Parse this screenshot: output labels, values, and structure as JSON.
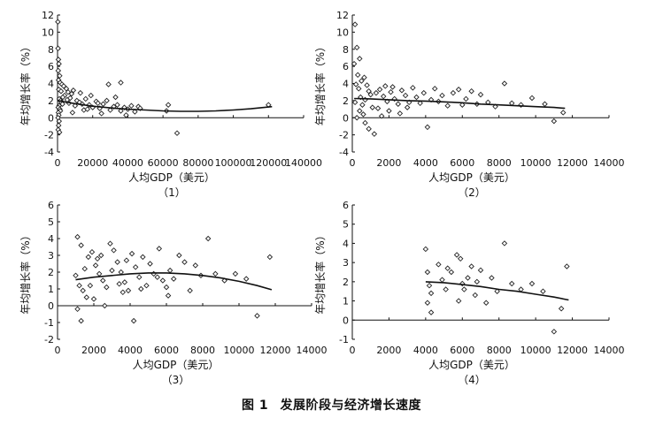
{
  "figure": {
    "caption_number": "图 1",
    "caption_title": "发展阶段与经济增长速度"
  },
  "chart_data": [
    {
      "type": "scatter",
      "label": "（1）",
      "xlabel": "人均GDP（美元）",
      "ylabel": "年均增长率（%）",
      "xlim": [
        0,
        140000
      ],
      "ylim": [
        -4,
        12
      ],
      "xticks": [
        0,
        20000,
        40000,
        60000,
        80000,
        100000,
        120000,
        140000
      ],
      "yticks": [
        -4,
        -2,
        0,
        2,
        4,
        6,
        8,
        10,
        12
      ],
      "points": [
        [
          200,
          11.2
        ],
        [
          300,
          8.1
        ],
        [
          500,
          6.8
        ],
        [
          800,
          6.3
        ],
        [
          400,
          5.5
        ],
        [
          1200,
          4.9
        ],
        [
          600,
          4.4
        ],
        [
          1500,
          4.1
        ],
        [
          2500,
          3.9
        ],
        [
          3500,
          3.7
        ],
        [
          700,
          3.3
        ],
        [
          2000,
          3.1
        ],
        [
          5000,
          3.4
        ],
        [
          6000,
          3.0
        ],
        [
          8000,
          2.8
        ],
        [
          9000,
          3.2
        ],
        [
          4000,
          2.6
        ],
        [
          3000,
          2.4
        ],
        [
          1000,
          2.2
        ],
        [
          1800,
          2.0
        ],
        [
          2200,
          1.8
        ],
        [
          2800,
          1.6
        ],
        [
          900,
          1.4
        ],
        [
          400,
          1.2
        ],
        [
          1300,
          1.0
        ],
        [
          1600,
          0.8
        ],
        [
          500,
          0.6
        ],
        [
          700,
          0.3
        ],
        [
          300,
          0.0
        ],
        [
          900,
          -0.4
        ],
        [
          600,
          -0.9
        ],
        [
          400,
          -1.4
        ],
        [
          1100,
          -1.7
        ],
        [
          5500,
          2.1
        ],
        [
          6500,
          1.7
        ],
        [
          7200,
          2.3
        ],
        [
          11000,
          2.0
        ],
        [
          12500,
          1.8
        ],
        [
          14000,
          1.6
        ],
        [
          16000,
          2.2
        ],
        [
          18000,
          1.5
        ],
        [
          20000,
          1.2
        ],
        [
          22000,
          1.9
        ],
        [
          24000,
          1.1
        ],
        [
          26000,
          1.6
        ],
        [
          28000,
          2.0
        ],
        [
          30000,
          0.9
        ],
        [
          32000,
          1.3
        ],
        [
          34000,
          1.5
        ],
        [
          36000,
          0.8
        ],
        [
          38000,
          1.2
        ],
        [
          40000,
          1.0
        ],
        [
          42000,
          1.4
        ],
        [
          44000,
          0.7
        ],
        [
          46000,
          1.3
        ],
        [
          29000,
          3.9
        ],
        [
          36000,
          4.1
        ],
        [
          39000,
          0.3
        ],
        [
          33000,
          2.4
        ],
        [
          25000,
          0.5
        ],
        [
          15000,
          0.9
        ],
        [
          10000,
          1.4
        ],
        [
          13000,
          2.9
        ],
        [
          8500,
          0.6
        ],
        [
          47000,
          1.1
        ],
        [
          62000,
          0.8
        ],
        [
          63000,
          1.5
        ],
        [
          68000,
          -1.8
        ],
        [
          120000,
          1.5
        ],
        [
          19000,
          2.6
        ],
        [
          17000,
          1.0
        ],
        [
          23000,
          1.7
        ]
      ],
      "trend": [
        [
          0,
          2.0
        ],
        [
          10000,
          1.65
        ],
        [
          20000,
          1.35
        ],
        [
          30000,
          1.15
        ],
        [
          40000,
          1.0
        ],
        [
          50000,
          0.9
        ],
        [
          60000,
          0.8
        ],
        [
          70000,
          0.75
        ],
        [
          80000,
          0.75
        ],
        [
          90000,
          0.8
        ],
        [
          100000,
          0.9
        ],
        [
          110000,
          1.05
        ],
        [
          122000,
          1.3
        ]
      ]
    },
    {
      "type": "scatter",
      "label": "（2）",
      "xlabel": "人均GDP（美元）",
      "ylabel": "年均增长率（%）",
      "xlim": [
        0,
        14000
      ],
      "ylim": [
        -4,
        12
      ],
      "xticks": [
        0,
        2000,
        4000,
        6000,
        8000,
        10000,
        12000,
        14000
      ],
      "yticks": [
        -4,
        -2,
        0,
        2,
        4,
        6,
        8,
        10,
        12
      ],
      "points": [
        [
          150,
          10.9
        ],
        [
          250,
          8.2
        ],
        [
          400,
          6.9
        ],
        [
          100,
          6.3
        ],
        [
          300,
          5.0
        ],
        [
          500,
          4.3
        ],
        [
          650,
          4.7
        ],
        [
          200,
          3.9
        ],
        [
          350,
          3.4
        ],
        [
          800,
          3.8
        ],
        [
          900,
          3.1
        ],
        [
          1000,
          2.7
        ],
        [
          450,
          2.4
        ],
        [
          700,
          2.1
        ],
        [
          150,
          1.8
        ],
        [
          550,
          1.5
        ],
        [
          1100,
          1.2
        ],
        [
          400,
          0.8
        ],
        [
          600,
          0.4
        ],
        [
          250,
          0.0
        ],
        [
          700,
          -0.6
        ],
        [
          900,
          -1.3
        ],
        [
          1200,
          -1.9
        ],
        [
          1300,
          2.9
        ],
        [
          1500,
          3.3
        ],
        [
          1700,
          2.5
        ],
        [
          1900,
          1.9
        ],
        [
          2100,
          3.0
        ],
        [
          2300,
          2.2
        ],
        [
          2500,
          1.6
        ],
        [
          2700,
          3.2
        ],
        [
          2900,
          2.6
        ],
        [
          3100,
          1.8
        ],
        [
          3300,
          3.5
        ],
        [
          3500,
          2.4
        ],
        [
          3700,
          1.7
        ],
        [
          3900,
          2.9
        ],
        [
          4100,
          -1.1
        ],
        [
          4300,
          2.1
        ],
        [
          4500,
          3.4
        ],
        [
          4700,
          1.9
        ],
        [
          4900,
          2.6
        ],
        [
          5200,
          1.4
        ],
        [
          5500,
          2.9
        ],
        [
          5800,
          3.3
        ],
        [
          6000,
          1.5
        ],
        [
          6200,
          2.2
        ],
        [
          6500,
          3.1
        ],
        [
          6800,
          1.6
        ],
        [
          7000,
          2.7
        ],
        [
          7400,
          1.8
        ],
        [
          7800,
          1.3
        ],
        [
          8300,
          4.0
        ],
        [
          8700,
          1.7
        ],
        [
          9200,
          1.5
        ],
        [
          9800,
          2.3
        ],
        [
          10500,
          1.6
        ],
        [
          11000,
          -0.4
        ],
        [
          11500,
          0.6
        ],
        [
          1600,
          0.2
        ],
        [
          2000,
          0.8
        ],
        [
          1400,
          1.1
        ],
        [
          2600,
          0.5
        ],
        [
          3000,
          1.2
        ],
        [
          1800,
          3.7
        ],
        [
          2200,
          3.6
        ]
      ],
      "trend": [
        [
          100,
          2.25
        ],
        [
          1000,
          2.2
        ],
        [
          2000,
          2.1
        ],
        [
          3000,
          2.0
        ],
        [
          4000,
          1.95
        ],
        [
          5000,
          1.85
        ],
        [
          6000,
          1.75
        ],
        [
          7000,
          1.6
        ],
        [
          8000,
          1.5
        ],
        [
          9000,
          1.4
        ],
        [
          10000,
          1.3
        ],
        [
          11000,
          1.2
        ],
        [
          11600,
          1.1
        ]
      ]
    },
    {
      "type": "scatter",
      "label": "（3）",
      "xlabel": "人均GDP（美元）",
      "ylabel": "年均增长率（%）",
      "xlim": [
        0,
        14000
      ],
      "ylim": [
        -2,
        6
      ],
      "xticks": [
        0,
        2000,
        4000,
        6000,
        8000,
        10000,
        12000,
        14000
      ],
      "yticks": [
        -2,
        -1,
        0,
        1,
        2,
        3,
        4,
        5,
        6
      ],
      "points": [
        [
          1100,
          4.1
        ],
        [
          1300,
          3.6
        ],
        [
          1500,
          2.2
        ],
        [
          1000,
          1.8
        ],
        [
          1200,
          1.2
        ],
        [
          1400,
          0.9
        ],
        [
          1600,
          0.5
        ],
        [
          1100,
          -0.2
        ],
        [
          1300,
          -0.9
        ],
        [
          1700,
          2.9
        ],
        [
          1900,
          3.2
        ],
        [
          2100,
          2.4
        ],
        [
          2300,
          1.9
        ],
        [
          2500,
          1.5
        ],
        [
          2700,
          1.1
        ],
        [
          2900,
          3.7
        ],
        [
          3100,
          3.3
        ],
        [
          3300,
          2.6
        ],
        [
          3500,
          2.0
        ],
        [
          3700,
          1.4
        ],
        [
          3900,
          0.9
        ],
        [
          4100,
          3.1
        ],
        [
          4300,
          2.3
        ],
        [
          4500,
          1.7
        ],
        [
          4700,
          2.9
        ],
        [
          4900,
          1.2
        ],
        [
          5100,
          2.5
        ],
        [
          5300,
          1.9
        ],
        [
          5600,
          3.4
        ],
        [
          5800,
          1.5
        ],
        [
          6000,
          1.1
        ],
        [
          6200,
          2.1
        ],
        [
          6400,
          1.6
        ],
        [
          6700,
          3.0
        ],
        [
          7000,
          2.6
        ],
        [
          7300,
          0.9
        ],
        [
          7600,
          2.4
        ],
        [
          7900,
          1.8
        ],
        [
          8300,
          4.0
        ],
        [
          8700,
          1.9
        ],
        [
          9200,
          1.5
        ],
        [
          9800,
          1.9
        ],
        [
          10400,
          1.6
        ],
        [
          11000,
          -0.6
        ],
        [
          11700,
          2.9
        ],
        [
          1800,
          1.2
        ],
        [
          2000,
          0.4
        ],
        [
          2200,
          2.8
        ],
        [
          2600,
          0.0
        ],
        [
          3000,
          2.1
        ],
        [
          3400,
          1.3
        ],
        [
          3800,
          2.7
        ],
        [
          4200,
          -0.9
        ],
        [
          4600,
          1.0
        ],
        [
          5500,
          1.7
        ],
        [
          6100,
          0.6
        ],
        [
          2400,
          3.0
        ],
        [
          3600,
          0.8
        ]
      ],
      "trend": [
        [
          1000,
          1.55
        ],
        [
          2000,
          1.7
        ],
        [
          3000,
          1.8
        ],
        [
          4000,
          1.9
        ],
        [
          5000,
          1.95
        ],
        [
          6000,
          1.95
        ],
        [
          7000,
          1.9
        ],
        [
          8000,
          1.8
        ],
        [
          9000,
          1.65
        ],
        [
          10000,
          1.45
        ],
        [
          11000,
          1.2
        ],
        [
          11800,
          0.95
        ]
      ]
    },
    {
      "type": "scatter",
      "label": "（4）",
      "xlabel": "人均GDP（美元）",
      "ylabel": "年均增长率（%）",
      "xlim": [
        0,
        14000
      ],
      "ylim": [
        -1,
        6
      ],
      "xticks": [
        0,
        2000,
        4000,
        6000,
        8000,
        10000,
        12000,
        14000
      ],
      "yticks": [
        -1,
        0,
        1,
        2,
        3,
        4,
        5,
        6
      ],
      "points": [
        [
          4000,
          3.7
        ],
        [
          4100,
          2.5
        ],
        [
          4200,
          1.8
        ],
        [
          4300,
          1.4
        ],
        [
          4100,
          0.9
        ],
        [
          4300,
          0.4
        ],
        [
          4700,
          2.9
        ],
        [
          4900,
          2.1
        ],
        [
          5100,
          1.6
        ],
        [
          5400,
          2.5
        ],
        [
          5700,
          3.4
        ],
        [
          5900,
          3.2
        ],
        [
          5800,
          1.0
        ],
        [
          6100,
          1.6
        ],
        [
          6300,
          2.2
        ],
        [
          6500,
          2.8
        ],
        [
          6700,
          1.3
        ],
        [
          7000,
          2.6
        ],
        [
          7300,
          0.9
        ],
        [
          7600,
          2.2
        ],
        [
          7900,
          1.5
        ],
        [
          8300,
          4.0
        ],
        [
          8700,
          1.9
        ],
        [
          9200,
          1.6
        ],
        [
          9800,
          1.9
        ],
        [
          10400,
          1.5
        ],
        [
          11000,
          -0.6
        ],
        [
          11700,
          2.8
        ],
        [
          11400,
          0.6
        ],
        [
          6000,
          1.9
        ],
        [
          6800,
          2.0
        ],
        [
          5200,
          2.7
        ]
      ],
      "trend": [
        [
          4000,
          2.0
        ],
        [
          5000,
          1.95
        ],
        [
          6000,
          1.85
        ],
        [
          7000,
          1.75
        ],
        [
          8000,
          1.6
        ],
        [
          9000,
          1.5
        ],
        [
          10000,
          1.35
        ],
        [
          11000,
          1.2
        ],
        [
          11800,
          1.05
        ]
      ]
    }
  ]
}
